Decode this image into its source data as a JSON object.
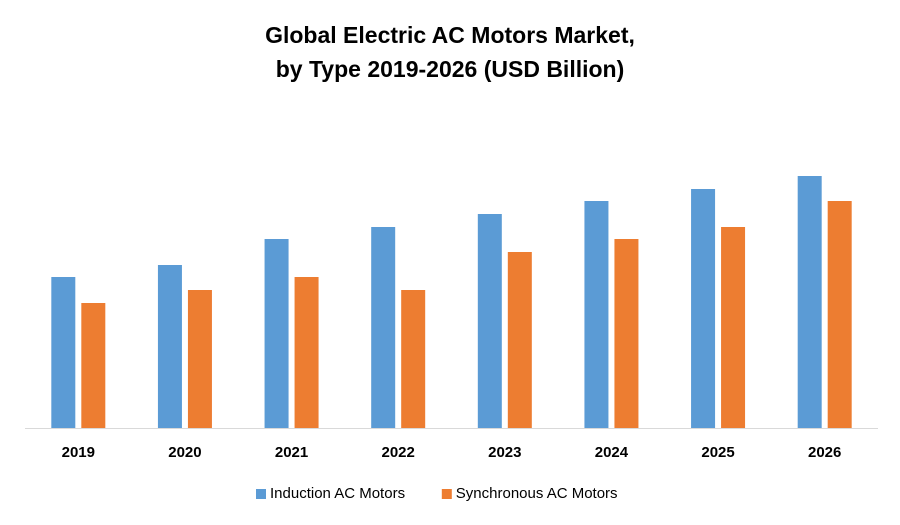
{
  "chart_data": {
    "type": "bar",
    "title": [
      "Global Electric AC Motors Market,",
      "by Type 2019-2026 (USD Billion)"
    ],
    "categories": [
      "2019",
      "2020",
      "2021",
      "2022",
      "2023",
      "2024",
      "2025",
      "2026"
    ],
    "series": [
      {
        "name": "Induction AC Motors",
        "color": "#5b9bd5",
        "values": [
          151,
          163,
          189,
          201,
          214,
          227,
          239,
          252
        ]
      },
      {
        "name": "Synchronous AC Motors",
        "color": "#ed7d31",
        "values": [
          125,
          138,
          151,
          138,
          176,
          189,
          201,
          227
        ]
      }
    ],
    "ylim": [
      0,
      300
    ],
    "legend": "bottom"
  }
}
